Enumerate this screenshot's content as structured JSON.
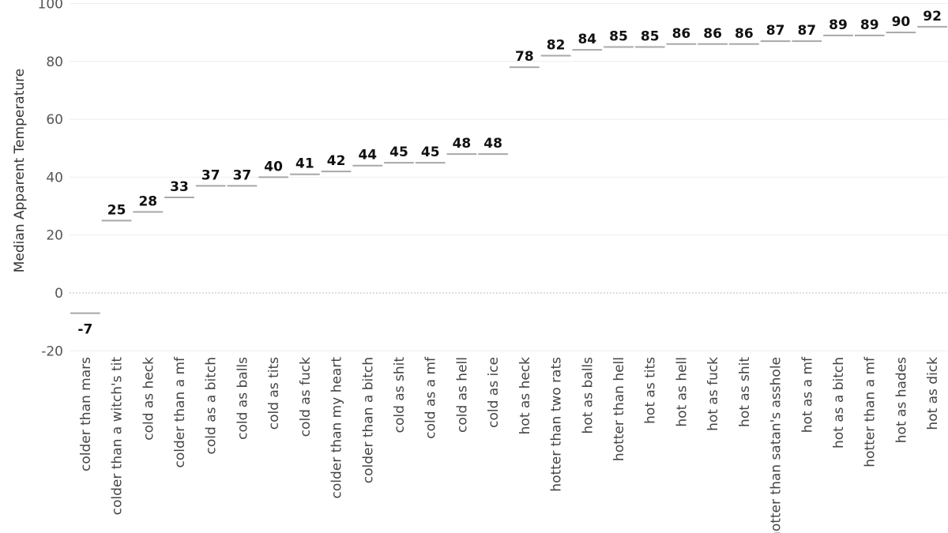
{
  "chart_data": {
    "type": "bar",
    "ylabel": "Median Apparent Temperature",
    "ylim": [
      -20,
      100
    ],
    "yticks": [
      -20,
      0,
      20,
      40,
      60,
      80,
      100
    ],
    "grid": true,
    "categories": [
      "colder than mars",
      "colder than a witch's tit",
      "cold as heck",
      "colder than a mf",
      "cold as a bitch",
      "cold as balls",
      "cold as tits",
      "cold as fuck",
      "colder than my heart",
      "colder than a bitch",
      "cold as shit",
      "cold as a mf",
      "cold as hell",
      "cold as ice",
      "hot as heck",
      "hotter than two rats",
      "hot as balls",
      "hotter than hell",
      "hot as tits",
      "hot as hell",
      "hot as fuck",
      "hot as shit",
      "hotter than satan's asshole",
      "hot as a mf",
      "hot as a bitch",
      "hotter than a mf",
      "hot as hades",
      "hot as dick"
    ],
    "values": [
      -7,
      25,
      28,
      33,
      37,
      37,
      40,
      41,
      42,
      44,
      45,
      45,
      48,
      48,
      78,
      82,
      84,
      85,
      85,
      86,
      86,
      86,
      87,
      87,
      89,
      89,
      90,
      92
    ],
    "mark_color": "#a8a8a8"
  }
}
